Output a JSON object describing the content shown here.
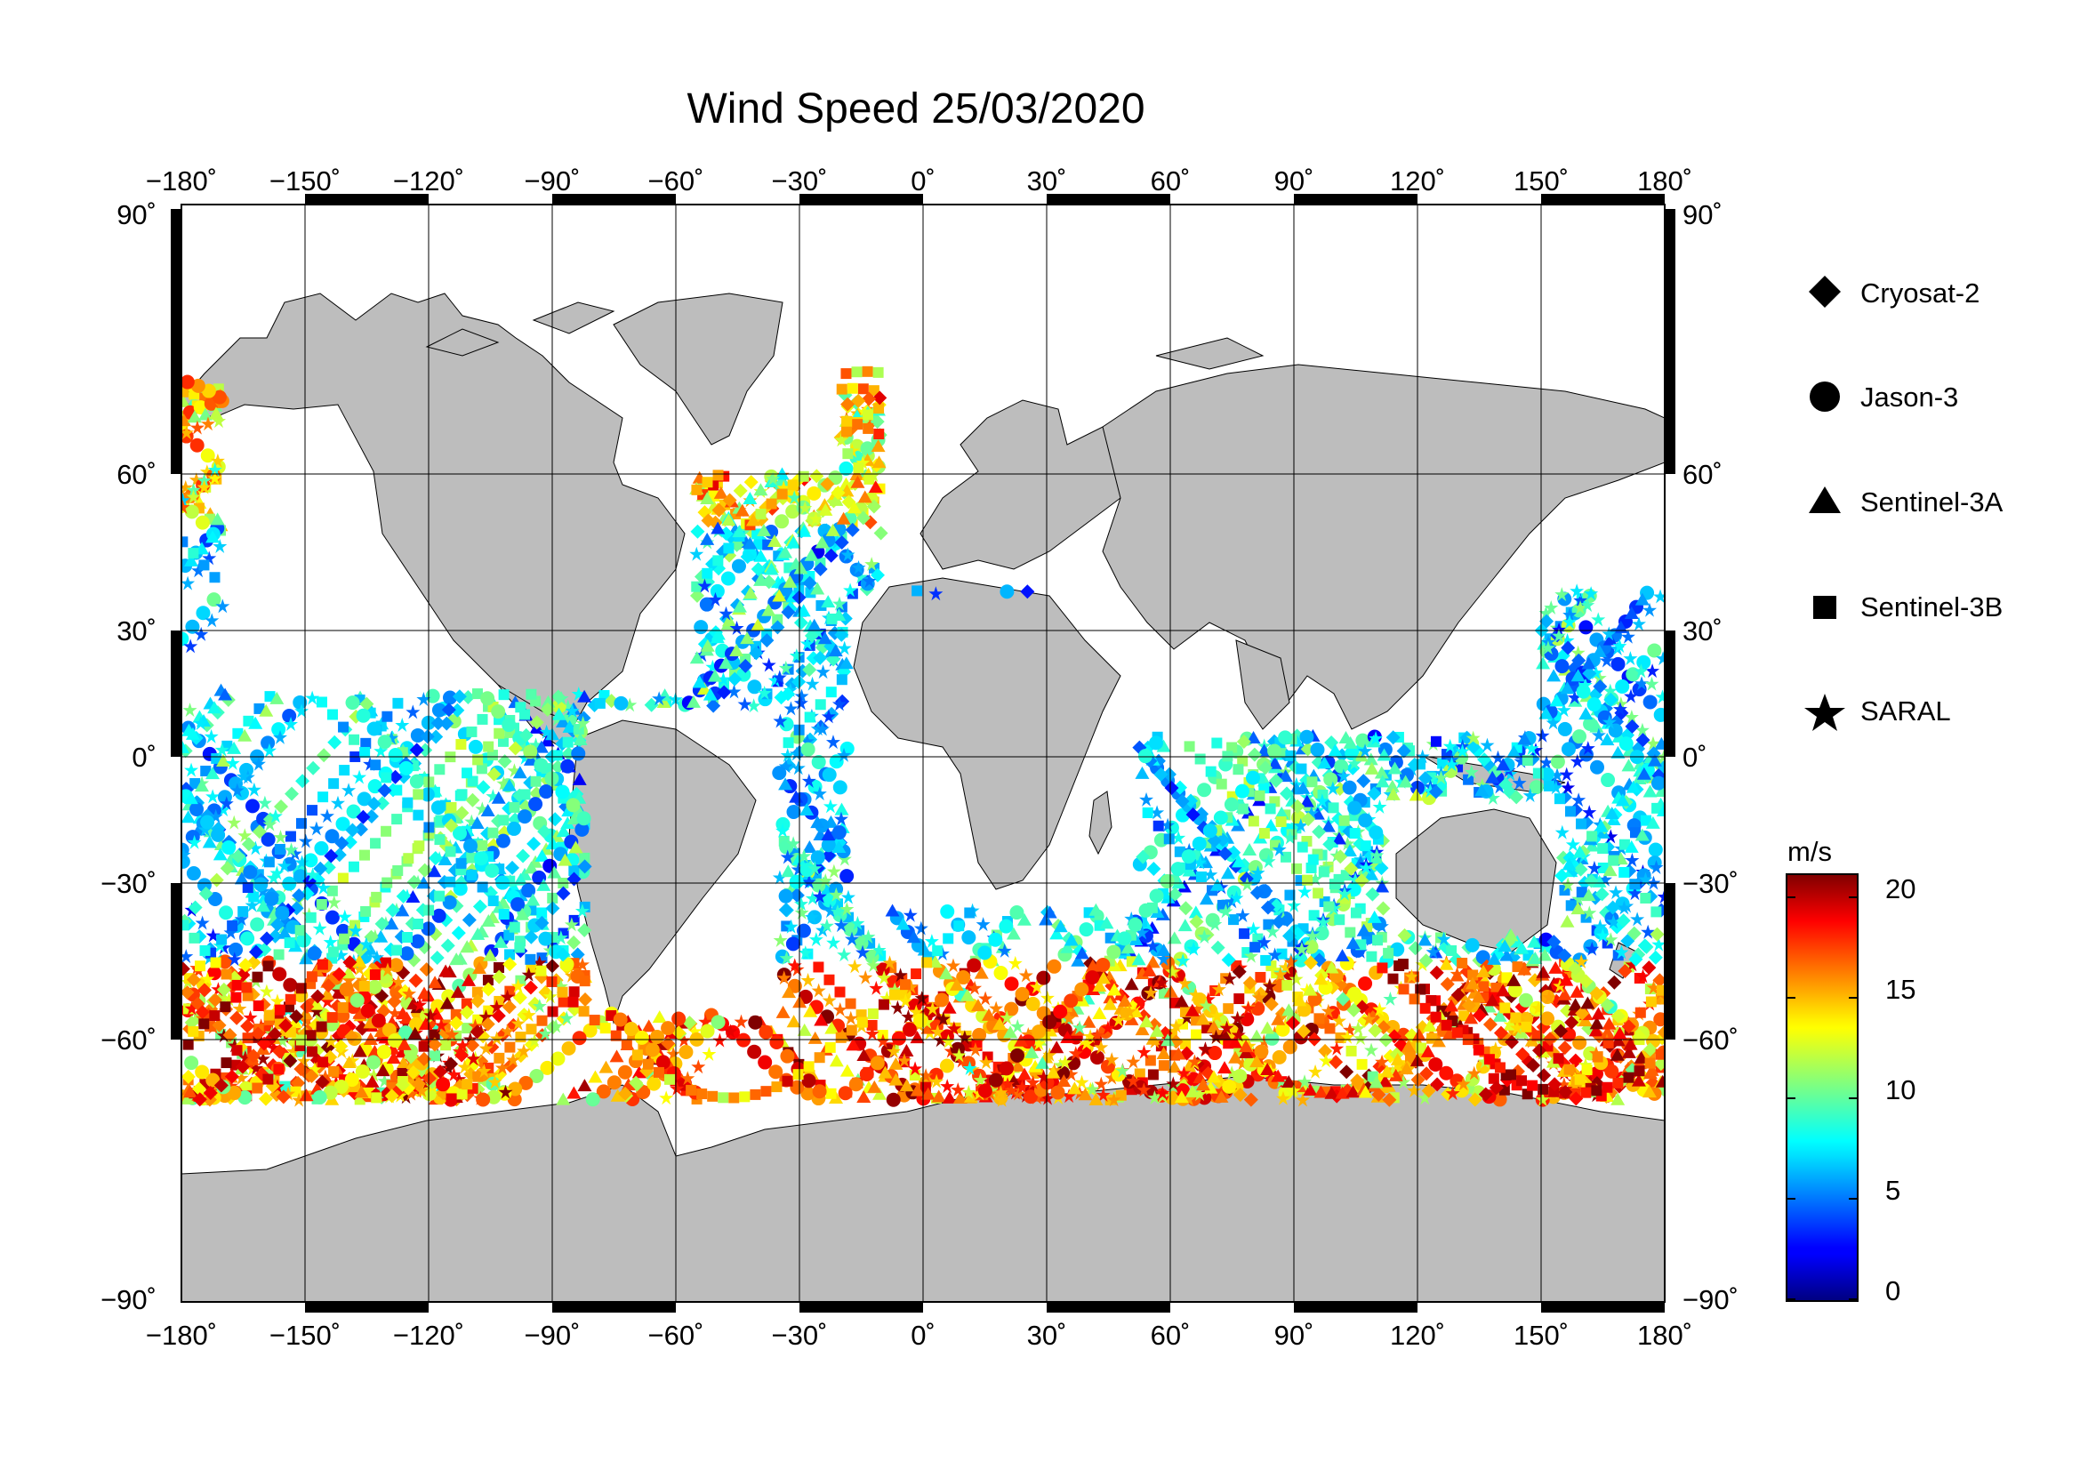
{
  "title": "Wind Speed 25/03/2020",
  "map": {
    "lon_ticks": [
      "−180˚",
      "−150˚",
      "−120˚",
      "−90˚",
      "−60˚",
      "−30˚",
      "0˚",
      "30˚",
      "60˚",
      "90˚",
      "120˚",
      "150˚",
      "180˚"
    ],
    "lat_ticks": [
      "90˚",
      "60˚",
      "30˚",
      "0˚",
      "−30˚",
      "−60˚",
      "−90˚"
    ],
    "land_color": "#bdbdbd",
    "ocean_color": "#ffffff",
    "projection": "equirectangular-like, lon -180 to 180, lat -90 to 90"
  },
  "legend": {
    "items": [
      {
        "label": "Cryosat-2",
        "symbol": "diamond-icon"
      },
      {
        "label": "Jason-3",
        "symbol": "circle-icon"
      },
      {
        "label": "Sentinel-3A",
        "symbol": "triangle-icon"
      },
      {
        "label": "Sentinel-3B",
        "symbol": "square-icon"
      },
      {
        "label": "SARAL",
        "symbol": "star-icon"
      }
    ]
  },
  "colorbar": {
    "unit": "m/s",
    "ticks": [
      "20",
      "15",
      "10",
      "5",
      "0"
    ],
    "range": [
      0,
      20
    ],
    "colormap": "jet"
  }
}
